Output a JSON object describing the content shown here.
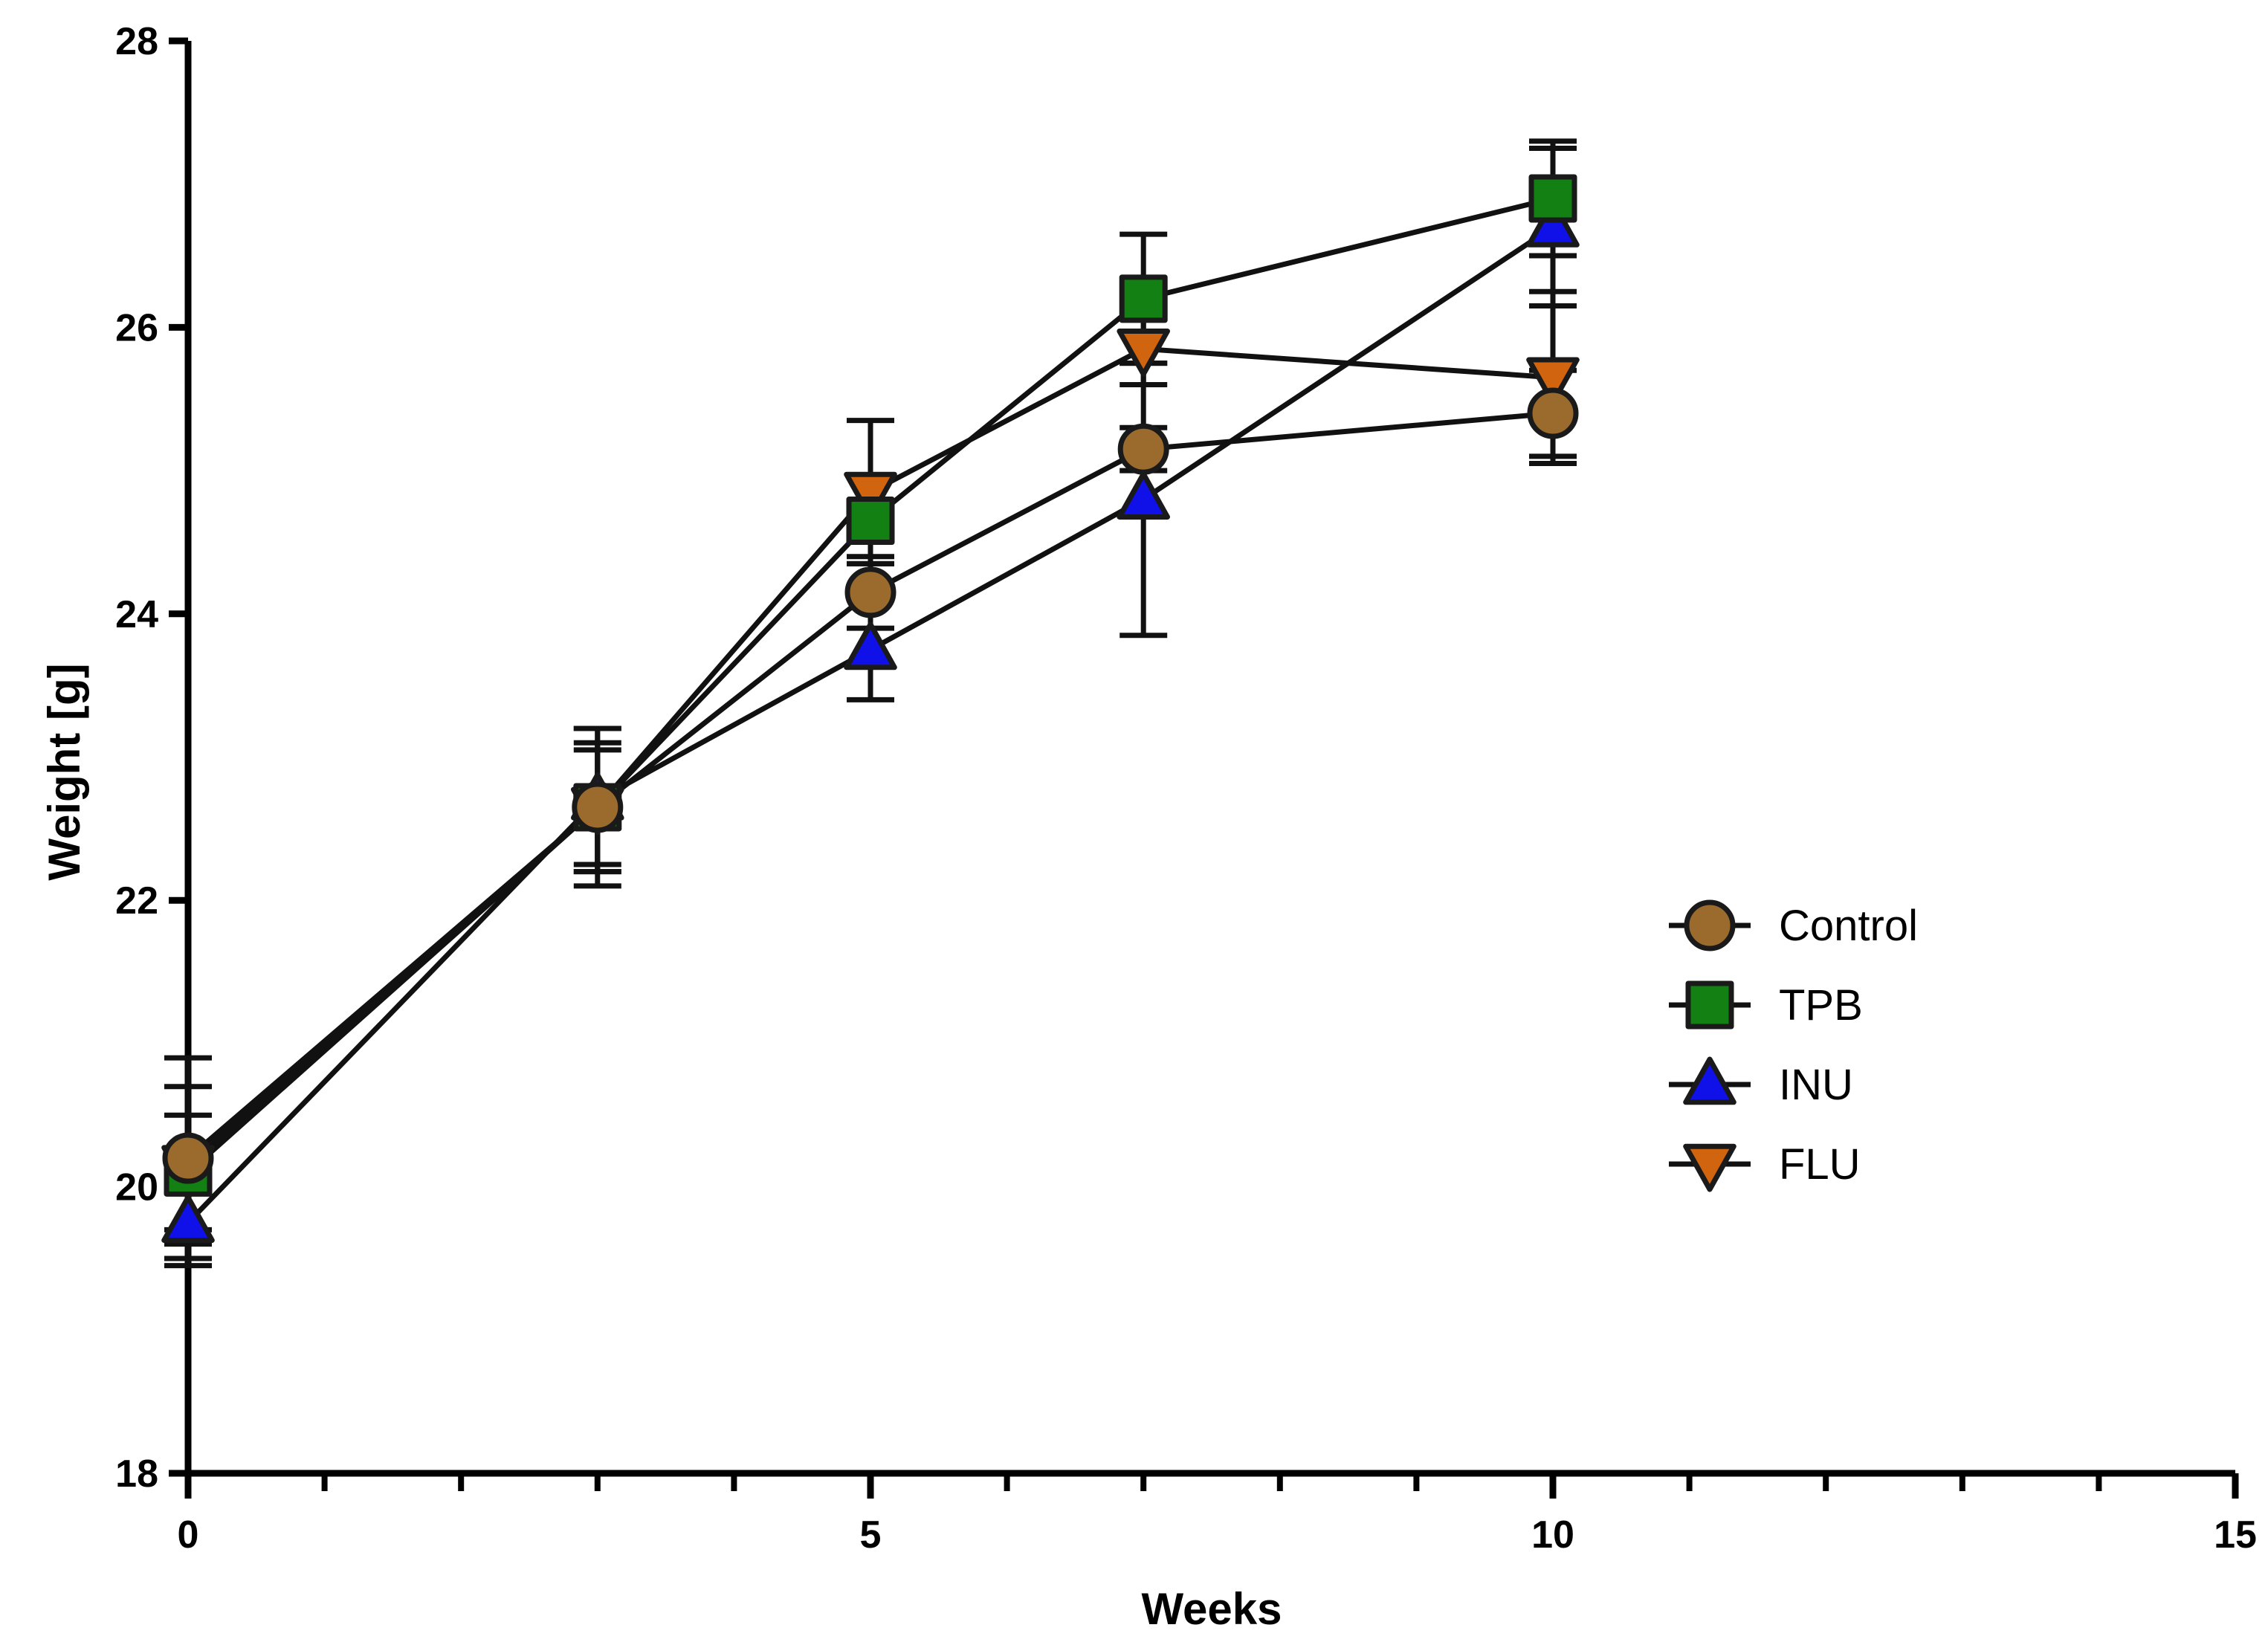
{
  "chart_data": {
    "type": "line",
    "title": "",
    "xlabel": "Weeks",
    "ylabel": "Weight [g]",
    "xlim": [
      0,
      15
    ],
    "ylim": [
      18,
      28
    ],
    "x_ticks": [
      0,
      5,
      10,
      15
    ],
    "x_tick_labels": [
      "0",
      "5",
      "10",
      "15"
    ],
    "x_minor_step": 1,
    "y_ticks": [
      18,
      20,
      22,
      24,
      26,
      28
    ],
    "y_tick_labels": [
      "18",
      "20",
      "22",
      "24",
      "26",
      "28"
    ],
    "grid": false,
    "legend_position": "center-right",
    "series": [
      {
        "name": "Control",
        "marker": "circle",
        "color": "#9B6B2E",
        "x": [
          0,
          3,
          5,
          7,
          10
        ],
        "y": [
          20.2,
          22.65,
          24.15,
          25.15,
          25.4
        ],
        "err": [
          0.7,
          0.55,
          0.25,
          0.15,
          0.3
        ]
      },
      {
        "name": "TPB",
        "marker": "square",
        "color": "#128012",
        "x": [
          0,
          3,
          5,
          7,
          10
        ],
        "y": [
          20.1,
          22.65,
          24.65,
          26.2,
          26.9
        ],
        "err": [
          0.4,
          0.4,
          0.3,
          0.45,
          0.4
        ]
      },
      {
        "name": "INU",
        "marker": "triangle-up",
        "color": "#1010E8",
        "x": [
          0,
          3,
          5,
          7,
          10
        ],
        "y": [
          19.75,
          22.7,
          23.75,
          24.8,
          26.7
        ],
        "err": [
          0.3,
          0.5,
          0.35,
          0.95,
          0.55
        ]
      },
      {
        "name": "FLU",
        "marker": "triangle-down",
        "color": "#D0640F",
        "x": [
          0,
          3,
          5,
          7,
          10
        ],
        "y": [
          20.15,
          22.65,
          24.85,
          25.85,
          25.65
        ],
        "err": [
          0.55,
          0.45,
          0.5,
          0.25,
          0.6
        ]
      }
    ]
  }
}
